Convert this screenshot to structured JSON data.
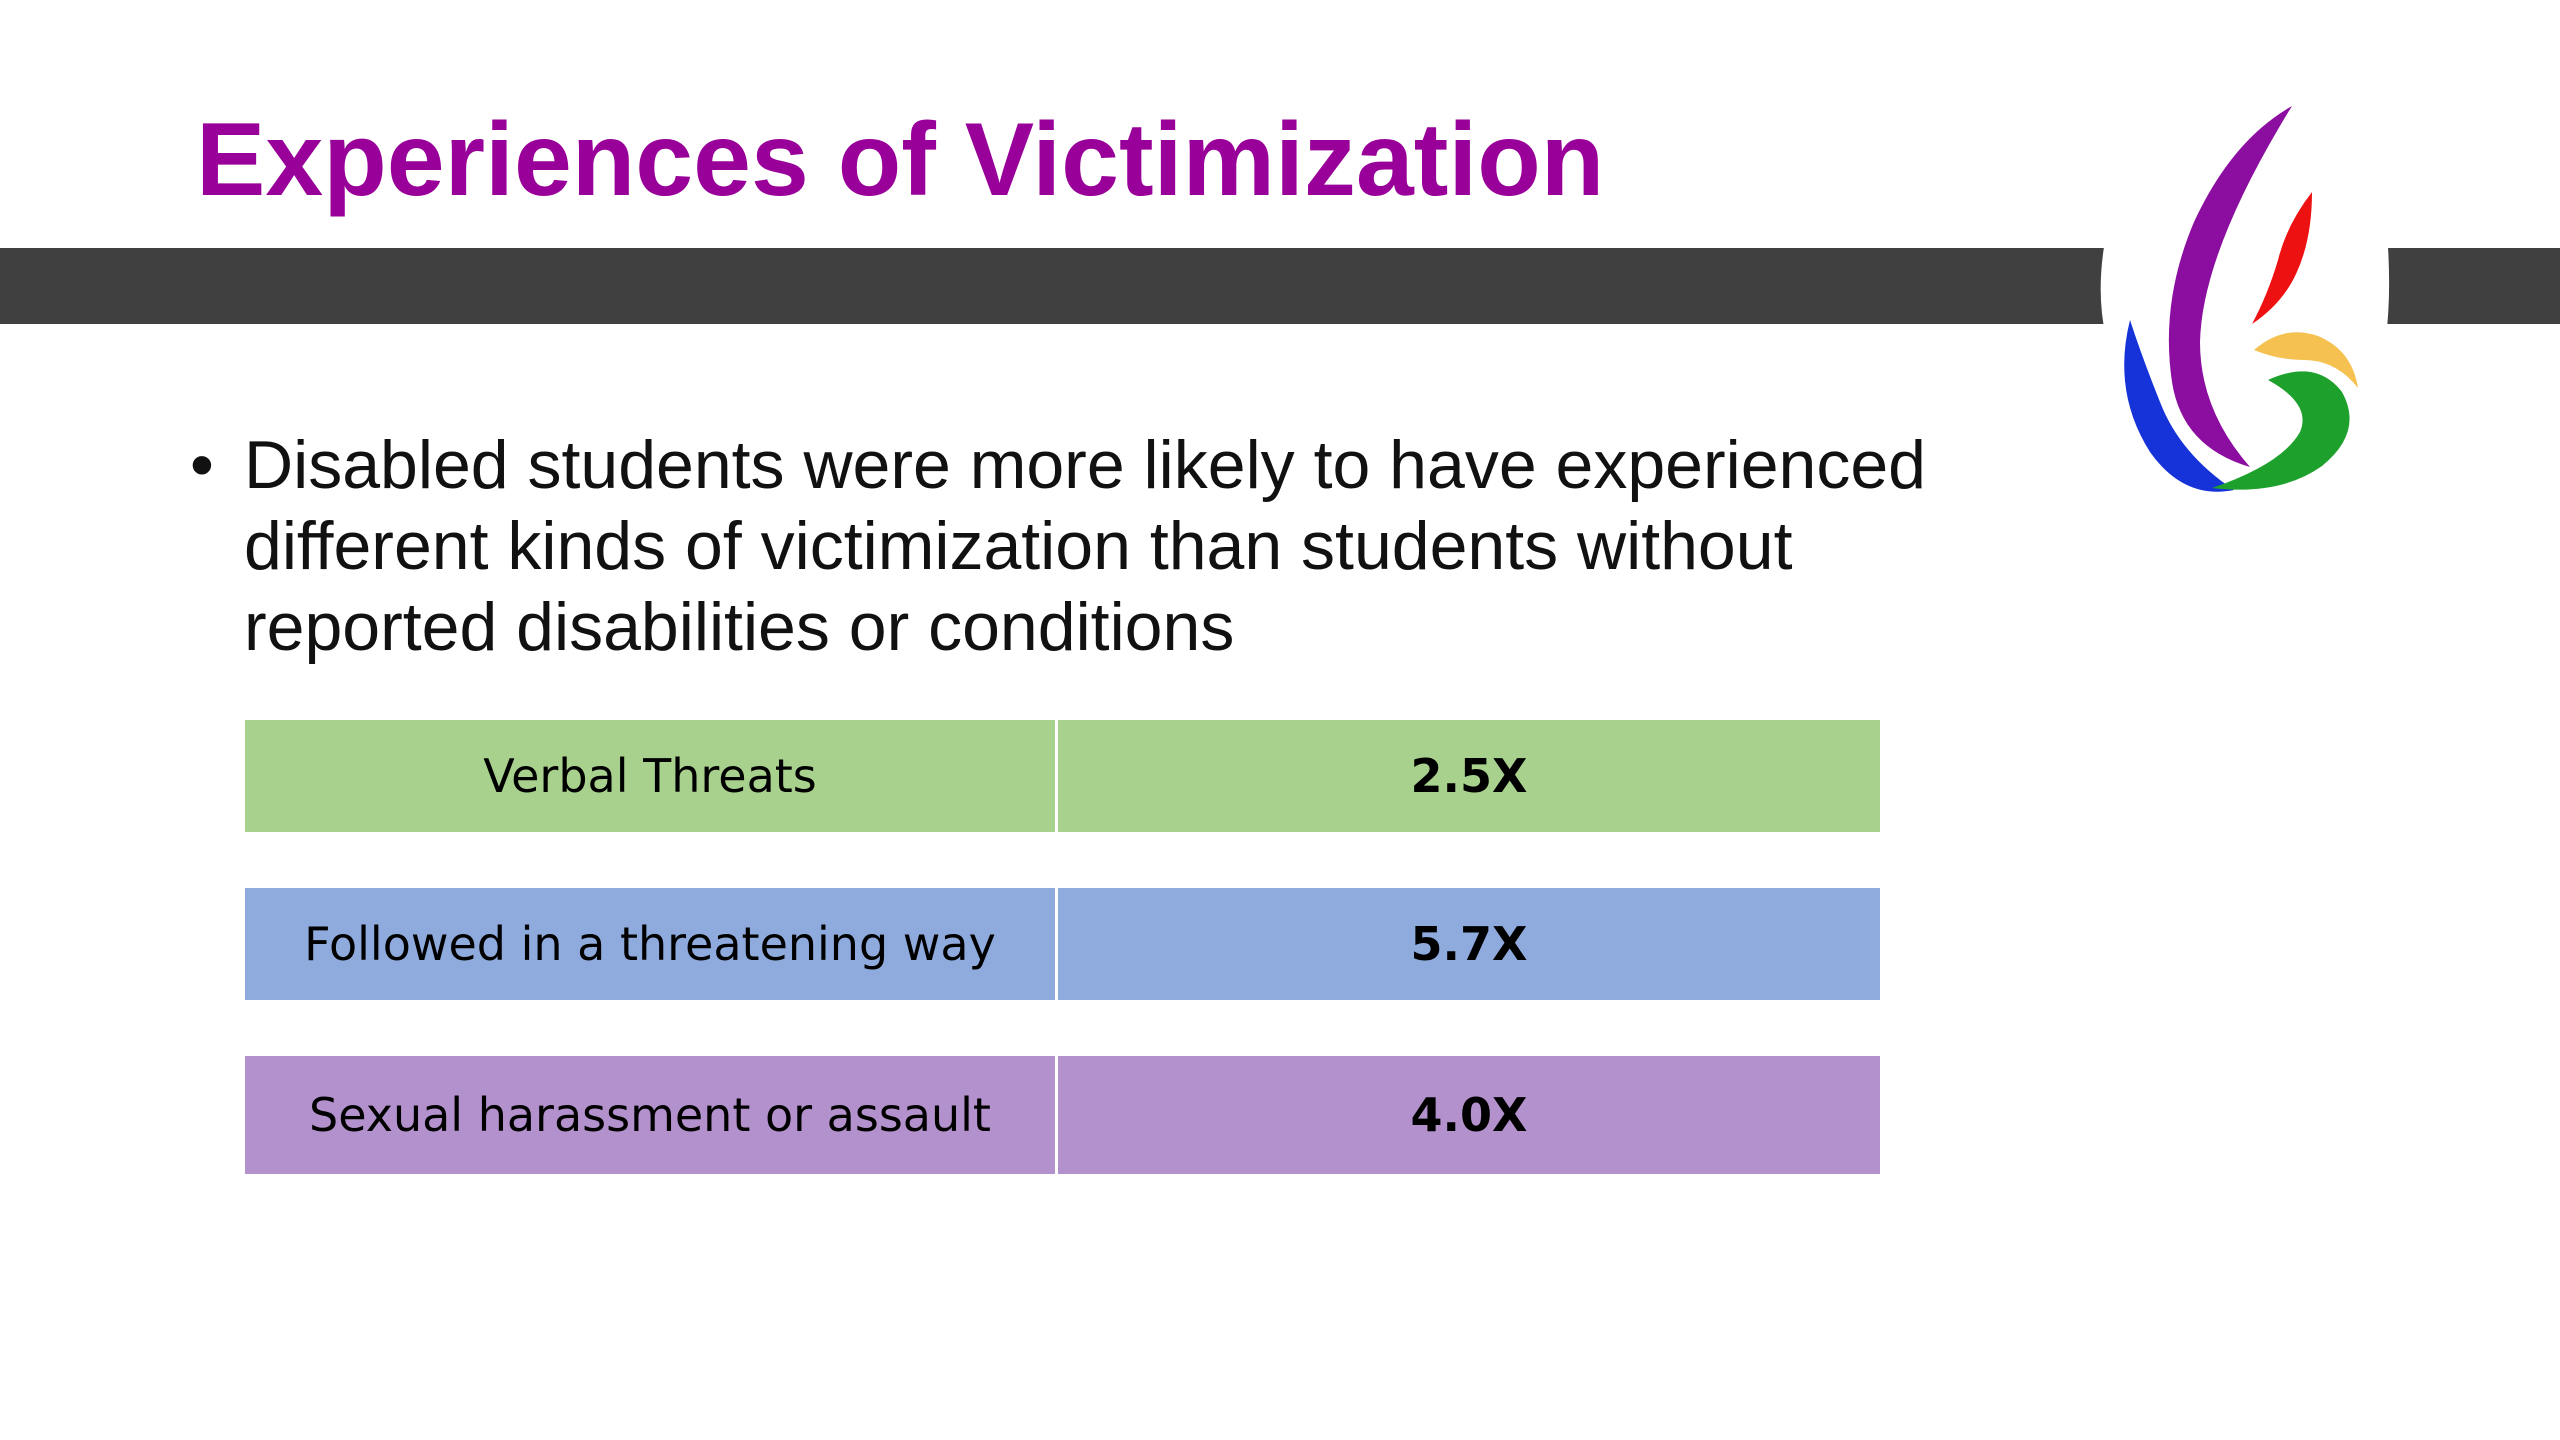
{
  "slide": {
    "title": "Experiences of Victimization",
    "bullet_marker": "•",
    "bullet_text": "Disabled students were more likely to have experienced different kinds of victimization than students without reported disabilities or conditions"
  },
  "stats": [
    {
      "label": "Verbal Threats",
      "value": "2.5X",
      "color": "#a9d18e"
    },
    {
      "label": "Followed in a threatening way",
      "value": "5.7X",
      "color": "#8faadc"
    },
    {
      "label": "Sexual harassment or assault",
      "value": "4.0X",
      "color": "#b391cc"
    }
  ],
  "colors": {
    "title": "#990099",
    "band": "#404040",
    "logo_purple": "#8b0ea0",
    "logo_red": "#ee1111",
    "logo_blue": "#1533d8",
    "logo_gold": "#f5c150",
    "logo_green": "#1ea12c"
  },
  "logo": {
    "icon": "flame-logo-icon"
  }
}
